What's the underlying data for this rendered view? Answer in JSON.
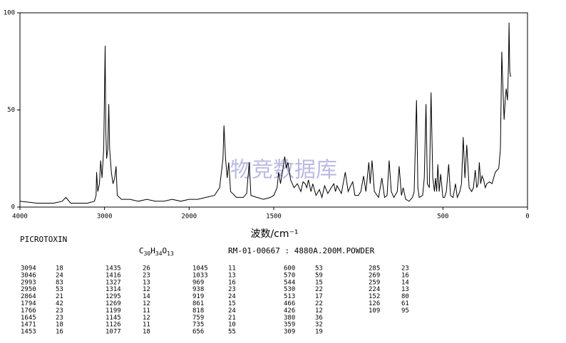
{
  "chart_data": {
    "type": "line",
    "x_label": "波数/cm⁻¹",
    "xlim": [
      4000,
      0
    ],
    "xticks": [
      4000,
      3000,
      2000,
      1500,
      500,
      0
    ],
    "x_scale_break": 2000,
    "x_scale_factor": 2,
    "ylim": [
      0,
      100
    ],
    "yticks": [
      0,
      50,
      100
    ],
    "color": "#000000",
    "x": [
      4000,
      3800,
      3600,
      3500,
      3458,
      3400,
      3200,
      3120,
      3100,
      3094,
      3080,
      3060,
      3046,
      3030,
      3010,
      2993,
      2985,
      2975,
      2962,
      2950,
      2940,
      2920,
      2900,
      2880,
      2864,
      2850,
      2800,
      2700,
      2600,
      2500,
      2400,
      2300,
      2200,
      2100,
      2000,
      1950,
      1900,
      1850,
      1820,
      1800,
      1794,
      1785,
      1775,
      1766,
      1755,
      1720,
      1680,
      1660,
      1645,
      1635,
      1600,
      1560,
      1520,
      1500,
      1480,
      1471,
      1460,
      1453,
      1445,
      1435,
      1425,
      1416,
      1400,
      1380,
      1360,
      1340,
      1327,
      1314,
      1305,
      1295,
      1280,
      1269,
      1250,
      1230,
      1215,
      1199,
      1180,
      1160,
      1145,
      1135,
      1126,
      1100,
      1077,
      1060,
      1045,
      1033,
      1020,
      1000,
      985,
      969,
      955,
      938,
      930,
      919,
      905,
      880,
      861,
      845,
      830,
      818,
      805,
      790,
      770,
      759,
      745,
      735,
      720,
      700,
      680,
      670,
      656,
      648,
      640,
      620,
      610,
      600,
      592,
      580,
      570,
      560,
      550,
      544,
      537,
      530,
      522,
      513,
      500,
      490,
      480,
      466,
      455,
      440,
      426,
      415,
      400,
      390,
      380,
      370,
      359,
      345,
      330,
      320,
      309,
      300,
      292,
      285,
      277,
      269,
      259,
      250,
      240,
      224,
      210,
      190,
      170,
      160,
      152,
      145,
      138,
      132,
      126,
      118,
      112,
      109,
      105,
      100
    ],
    "values": [
      3,
      2,
      2,
      3,
      5,
      2,
      2,
      3,
      6,
      18,
      8,
      12,
      24,
      15,
      30,
      83,
      40,
      25,
      30,
      53,
      30,
      18,
      12,
      15,
      21,
      6,
      4,
      4,
      3,
      4,
      3,
      3,
      4,
      3,
      4,
      4,
      5,
      6,
      10,
      25,
      42,
      25,
      15,
      23,
      8,
      5,
      5,
      7,
      23,
      6,
      5,
      4,
      5,
      6,
      10,
      18,
      12,
      16,
      20,
      26,
      20,
      23,
      14,
      10,
      12,
      8,
      13,
      12,
      10,
      14,
      8,
      12,
      6,
      9,
      5,
      11,
      7,
      10,
      12,
      8,
      11,
      7,
      18,
      8,
      11,
      13,
      6,
      6,
      8,
      16,
      8,
      23,
      12,
      24,
      8,
      5,
      15,
      5,
      6,
      24,
      8,
      5,
      8,
      21,
      6,
      10,
      4,
      3,
      5,
      8,
      55,
      10,
      5,
      6,
      15,
      53,
      12,
      10,
      59,
      15,
      8,
      15,
      8,
      22,
      8,
      17,
      5,
      5,
      8,
      22,
      6,
      5,
      12,
      5,
      8,
      12,
      36,
      15,
      32,
      10,
      8,
      10,
      19,
      10,
      12,
      23,
      12,
      16,
      14,
      10,
      12,
      13,
      12,
      18,
      20,
      30,
      80,
      60,
      45,
      55,
      61,
      55,
      75,
      95,
      70,
      67
    ]
  },
  "header": {
    "compound": "PICROTOXIN",
    "formula": [
      "C",
      "30",
      "H",
      "34",
      "O",
      "13"
    ],
    "sample": "RM-01-00667 : 4880A.200M.POWDER",
    "watermark": "物竞数据库"
  },
  "peak_table": [
    [
      3094,
      18
    ],
    [
      3046,
      24
    ],
    [
      2993,
      83
    ],
    [
      2950,
      53
    ],
    [
      2864,
      21
    ],
    [
      1794,
      42
    ],
    [
      1766,
      23
    ],
    [
      1645,
      23
    ],
    [
      1471,
      18
    ],
    [
      1453,
      16
    ],
    [
      1435,
      26
    ],
    [
      1416,
      23
    ],
    [
      1327,
      13
    ],
    [
      1314,
      12
    ],
    [
      1295,
      14
    ],
    [
      1269,
      12
    ],
    [
      1199,
      11
    ],
    [
      1145,
      12
    ],
    [
      1126,
      11
    ],
    [
      1077,
      18
    ],
    [
      1045,
      11
    ],
    [
      1033,
      13
    ],
    [
      969,
      16
    ],
    [
      938,
      23
    ],
    [
      919,
      24
    ],
    [
      861,
      15
    ],
    [
      818,
      24
    ],
    [
      759,
      21
    ],
    [
      735,
      10
    ],
    [
      656,
      55
    ],
    [
      600,
      53
    ],
    [
      570,
      59
    ],
    [
      544,
      15
    ],
    [
      530,
      22
    ],
    [
      513,
      17
    ],
    [
      466,
      22
    ],
    [
      426,
      12
    ],
    [
      380,
      36
    ],
    [
      359,
      32
    ],
    [
      309,
      19
    ],
    [
      285,
      23
    ],
    [
      269,
      16
    ],
    [
      259,
      14
    ],
    [
      224,
      13
    ],
    [
      152,
      80
    ],
    [
      126,
      61
    ],
    [
      109,
      95
    ]
  ]
}
